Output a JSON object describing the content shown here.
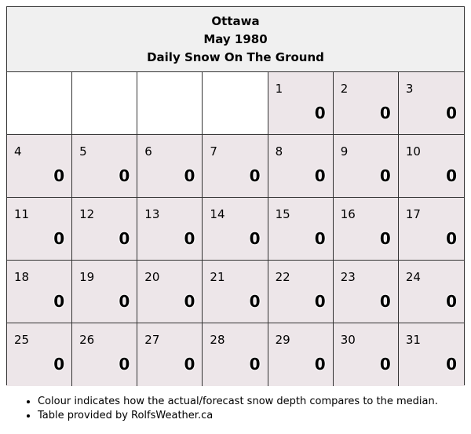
{
  "header": {
    "city": "Ottawa",
    "period": "May 1980",
    "title": "Daily Snow On The Ground"
  },
  "calendar": {
    "leading_blanks": 4,
    "days": [
      {
        "day": "1",
        "value": "0"
      },
      {
        "day": "2",
        "value": "0"
      },
      {
        "day": "3",
        "value": "0"
      },
      {
        "day": "4",
        "value": "0"
      },
      {
        "day": "5",
        "value": "0"
      },
      {
        "day": "6",
        "value": "0"
      },
      {
        "day": "7",
        "value": "0"
      },
      {
        "day": "8",
        "value": "0"
      },
      {
        "day": "9",
        "value": "0"
      },
      {
        "day": "10",
        "value": "0"
      },
      {
        "day": "11",
        "value": "0"
      },
      {
        "day": "12",
        "value": "0"
      },
      {
        "day": "13",
        "value": "0"
      },
      {
        "day": "14",
        "value": "0"
      },
      {
        "day": "15",
        "value": "0"
      },
      {
        "day": "16",
        "value": "0"
      },
      {
        "day": "17",
        "value": "0"
      },
      {
        "day": "18",
        "value": "0"
      },
      {
        "day": "19",
        "value": "0"
      },
      {
        "day": "20",
        "value": "0"
      },
      {
        "day": "21",
        "value": "0"
      },
      {
        "day": "22",
        "value": "0"
      },
      {
        "day": "23",
        "value": "0"
      },
      {
        "day": "24",
        "value": "0"
      },
      {
        "day": "25",
        "value": "0"
      },
      {
        "day": "26",
        "value": "0"
      },
      {
        "day": "27",
        "value": "0"
      },
      {
        "day": "28",
        "value": "0"
      },
      {
        "day": "29",
        "value": "0"
      },
      {
        "day": "30",
        "value": "0"
      },
      {
        "day": "31",
        "value": "0"
      }
    ]
  },
  "colors": {
    "day_cell": "#ede6e9",
    "header_bg": "#f0f0f0"
  },
  "notes": [
    "Colour indicates how the actual/forecast snow depth compares to the median.",
    "Table provided by RolfsWeather.ca"
  ]
}
